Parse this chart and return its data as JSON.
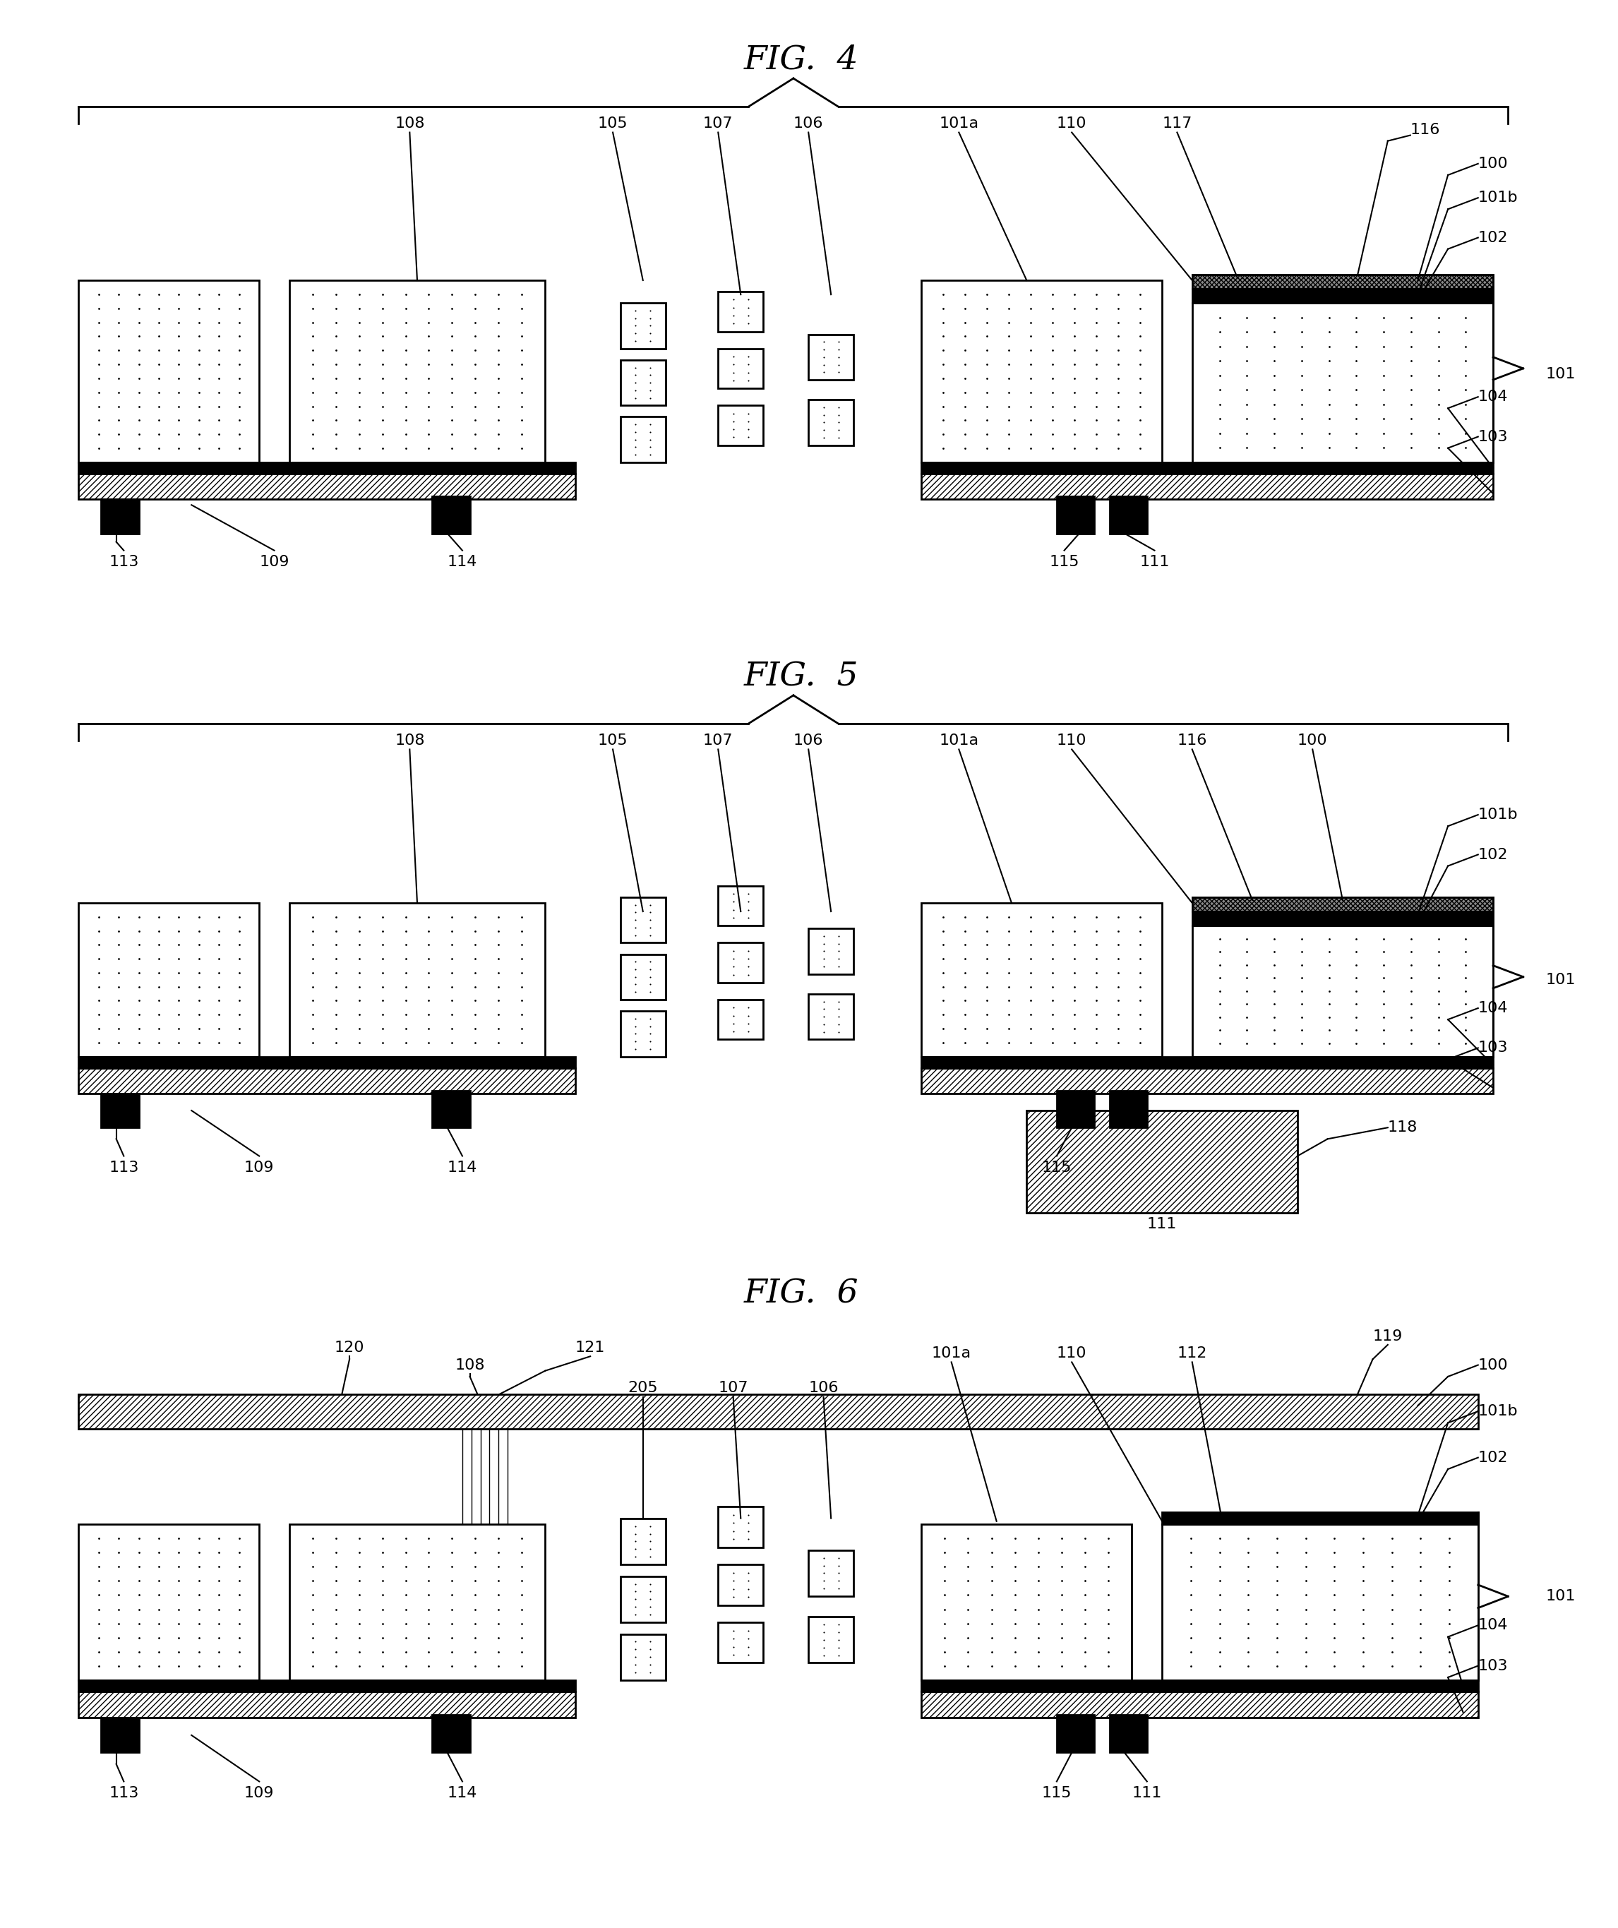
{
  "fig4_title": "FIG.  4",
  "fig5_title": "FIG.  5",
  "fig6_title": "FIG.  6",
  "bg_color": "#ffffff",
  "lw": 2.0,
  "label_fontsize": 16,
  "title_fontsize": 34
}
